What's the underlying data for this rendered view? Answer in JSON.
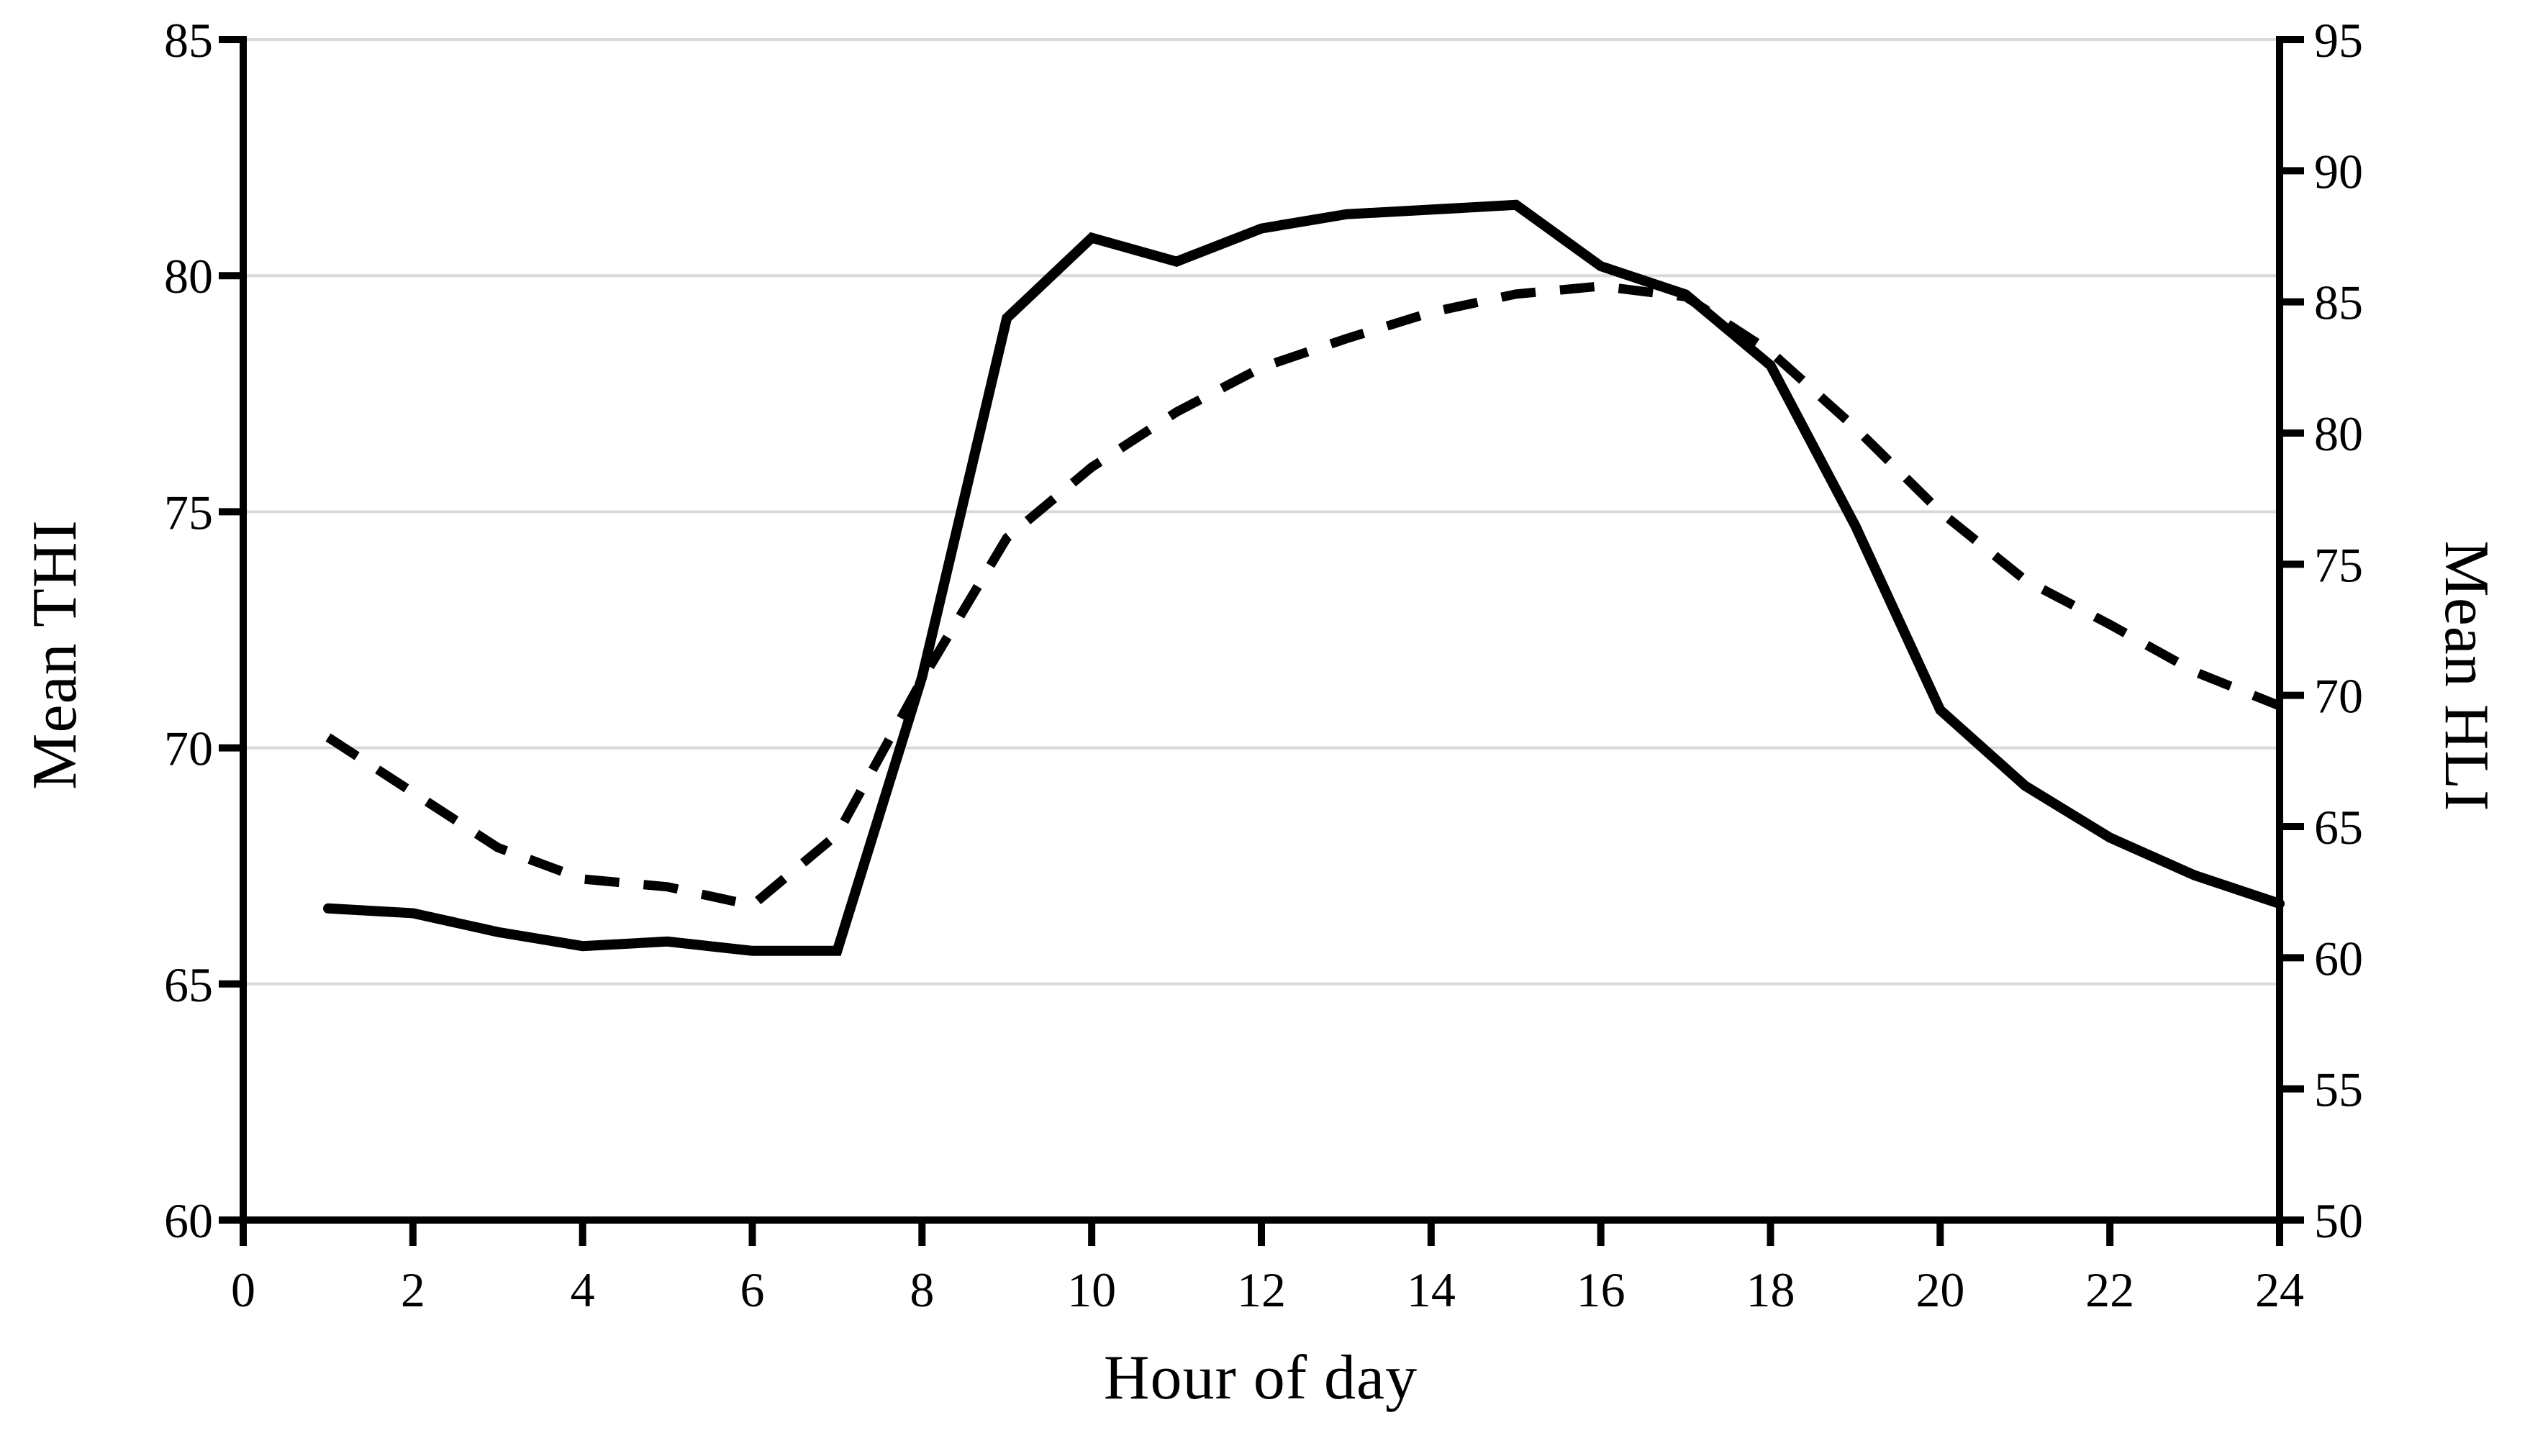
{
  "chart_data": {
    "type": "line",
    "title": "",
    "xlabel": "Hour of day",
    "ylabel_left": "Mean THI",
    "ylabel_right": "Mean HLI",
    "x": [
      1,
      2,
      3,
      4,
      5,
      6,
      7,
      8,
      9,
      10,
      11,
      12,
      13,
      14,
      15,
      16,
      17,
      18,
      19,
      20,
      21,
      22,
      23,
      24
    ],
    "series": [
      {
        "name": "Mean THI",
        "axis": "left",
        "style": "solid",
        "color": "#000000",
        "values": [
          66.6,
          66.5,
          66.1,
          65.8,
          65.9,
          65.7,
          65.7,
          71.5,
          79.1,
          80.8,
          80.3,
          81.0,
          81.3,
          81.4,
          81.5,
          80.2,
          79.6,
          78.1,
          74.7,
          70.8,
          69.2,
          68.1,
          67.3,
          66.7
        ]
      },
      {
        "name": "Mean HLI",
        "axis": "right",
        "style": "dashed",
        "color": "#000000",
        "values": [
          68.4,
          66.3,
          64.2,
          63.0,
          62.7,
          62.0,
          64.7,
          70.6,
          76.0,
          78.7,
          80.8,
          82.5,
          83.6,
          84.6,
          85.3,
          85.6,
          85.2,
          83.1,
          80.2,
          77.0,
          74.4,
          72.7,
          70.9,
          69.6
        ]
      }
    ],
    "axes": {
      "x": {
        "min": 0,
        "max": 24,
        "ticks": [
          0,
          2,
          4,
          6,
          8,
          10,
          12,
          14,
          16,
          18,
          20,
          22,
          24
        ]
      },
      "left": {
        "min": 60,
        "max": 85,
        "ticks": [
          60,
          65,
          70,
          75,
          80,
          85
        ]
      },
      "right": {
        "min": 50,
        "max": 95,
        "ticks": [
          50,
          55,
          60,
          65,
          70,
          75,
          80,
          85,
          90,
          95
        ]
      }
    },
    "grid": {
      "horizontal": true,
      "color": "#d9d9d9"
    },
    "axis_color": "#000000",
    "legend": "none"
  }
}
